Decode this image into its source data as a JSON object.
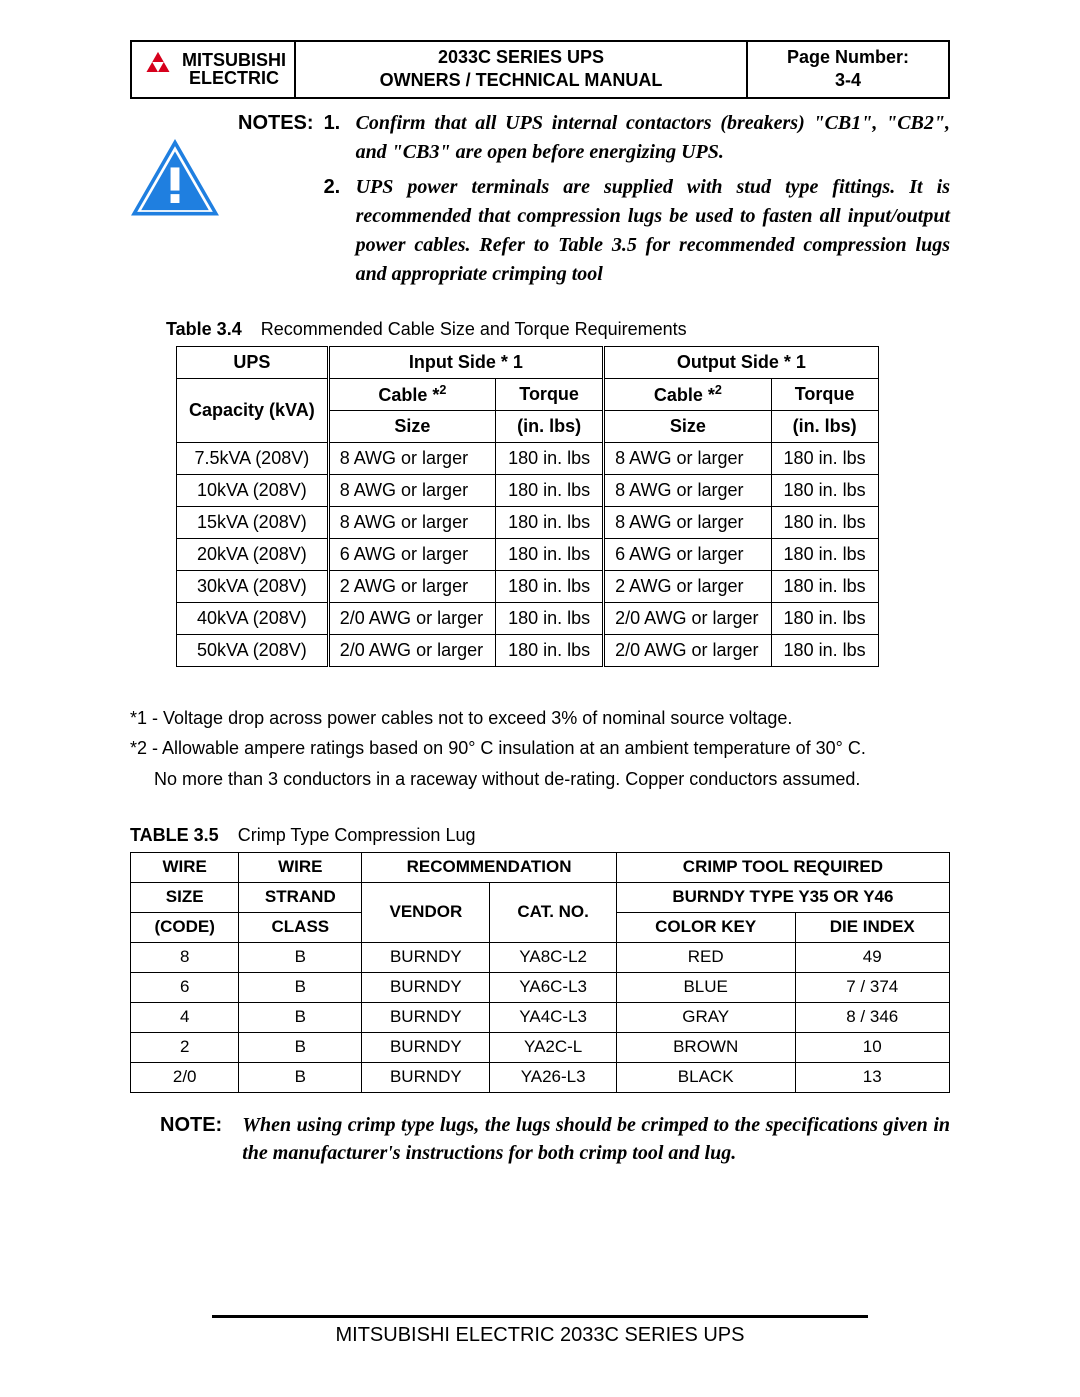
{
  "header": {
    "brand_top": "MITSUBISHI",
    "brand_bot": "ELECTRIC",
    "center_1": "2033C SERIES UPS",
    "center_2": "OWNERS / TECHNICAL MANUAL",
    "right_1": "Page Number:",
    "right_2": "3-4",
    "logo_color": "#d6001c"
  },
  "warning_icon": {
    "fill": "#1f7fe0",
    "border": "#1f7fe0",
    "bar": "#ffffff"
  },
  "notes": {
    "label": "NOTES:",
    "items": [
      {
        "idx": "1.",
        "text": "Confirm that all UPS internal contactors (breakers) \"CB1\", \"CB2\", and \"CB3\" are open before energizing UPS."
      },
      {
        "idx": "2.",
        "text": "UPS power terminals are supplied with stud type fittings. It is recommended that compression lugs be used to fasten all input/output power cables. Refer to Table 3.5 for recommended compression lugs and appropriate crimping tool"
      }
    ]
  },
  "table34": {
    "caption_label": "Table 3.4",
    "caption_text": "Recommended Cable Size and Torque Requirements",
    "col_capacity_1": "UPS",
    "col_capacity_2": "Capacity (kVA)",
    "group_in": "Input Side * 1",
    "group_out": "Output Side * 1",
    "sub_cable": "Cable *",
    "sub_cable_sup": "2",
    "sub_torque": "Torque",
    "sub_size": "Size",
    "sub_units": "(in. lbs)",
    "rows": [
      {
        "cap": "7.5kVA (208V)",
        "in_c": "8 AWG or larger",
        "in_t": "180 in. lbs",
        "out_c": "8 AWG or larger",
        "out_t": "180 in. lbs"
      },
      {
        "cap": "10kVA (208V)",
        "in_c": "8 AWG or larger",
        "in_t": "180 in. lbs",
        "out_c": "8 AWG or larger",
        "out_t": "180 in. lbs"
      },
      {
        "cap": "15kVA (208V)",
        "in_c": "8 AWG or larger",
        "in_t": "180 in. lbs",
        "out_c": "8 AWG or larger",
        "out_t": "180 in. lbs"
      },
      {
        "cap": "20kVA (208V)",
        "in_c": "6 AWG or larger",
        "in_t": "180 in. lbs",
        "out_c": "6 AWG or larger",
        "out_t": "180 in. lbs"
      },
      {
        "cap": "30kVA (208V)",
        "in_c": "2 AWG or larger",
        "in_t": "180 in. lbs",
        "out_c": "2 AWG or larger",
        "out_t": "180 in. lbs"
      },
      {
        "cap": "40kVA (208V)",
        "in_c": "2/0 AWG or larger",
        "in_t": "180 in. lbs",
        "out_c": "2/0 AWG or larger",
        "out_t": "180 in. lbs"
      },
      {
        "cap": "50kVA (208V)",
        "in_c": "2/0 AWG or larger",
        "in_t": "180 in. lbs",
        "out_c": "2/0 AWG or larger",
        "out_t": "180 in. lbs"
      }
    ]
  },
  "footnotes": {
    "f1": "*1 - Voltage drop across power cables not to exceed 3% of nominal source voltage.",
    "f2": "*2 - Allowable ampere ratings based on 90° C insulation at an ambient temperature of 30° C.",
    "f2b": "No more than 3 conductors in a raceway without de-rating. Copper conductors assumed."
  },
  "table35": {
    "caption_label": "TABLE 3.5",
    "caption_text": "Crimp Type Compression Lug",
    "h_wire1": "WIRE",
    "h_wire2": "SIZE",
    "h_wire3": "(CODE)",
    "h_strand1": "WIRE",
    "h_strand2": "STRAND",
    "h_strand3": "CLASS",
    "h_rec": "RECOMMENDATION",
    "h_rec_v": "VENDOR",
    "h_rec_c": "CAT. NO.",
    "h_tool": "CRIMP TOOL REQUIRED",
    "h_tool2": "BURNDY TYPE Y35 OR Y46",
    "h_tool_ck": "COLOR KEY",
    "h_tool_di": "DIE INDEX",
    "rows": [
      {
        "wire": "8",
        "strand": "B",
        "vendor": "BURNDY",
        "cat": "YA8C-L2",
        "ck": "RED",
        "di": "49"
      },
      {
        "wire": "6",
        "strand": "B",
        "vendor": "BURNDY",
        "cat": "YA6C-L3",
        "ck": "BLUE",
        "di": "7 / 374"
      },
      {
        "wire": "4",
        "strand": "B",
        "vendor": "BURNDY",
        "cat": "YA4C-L3",
        "ck": "GRAY",
        "di": "8 / 346"
      },
      {
        "wire": "2",
        "strand": "B",
        "vendor": "BURNDY",
        "cat": "YA2C-L",
        "ck": "BROWN",
        "di": "10"
      },
      {
        "wire": "2/0",
        "strand": "B",
        "vendor": "BURNDY",
        "cat": "YA26-L3",
        "ck": "BLACK",
        "di": "13"
      }
    ]
  },
  "note2": {
    "label": "NOTE:",
    "text": "When using crimp type lugs, the lugs should be crimped to the specifications given in the manufacturer's instructions for both crimp tool and lug."
  },
  "footer": "MITSUBISHI ELECTRIC 2033C SERIES UPS"
}
